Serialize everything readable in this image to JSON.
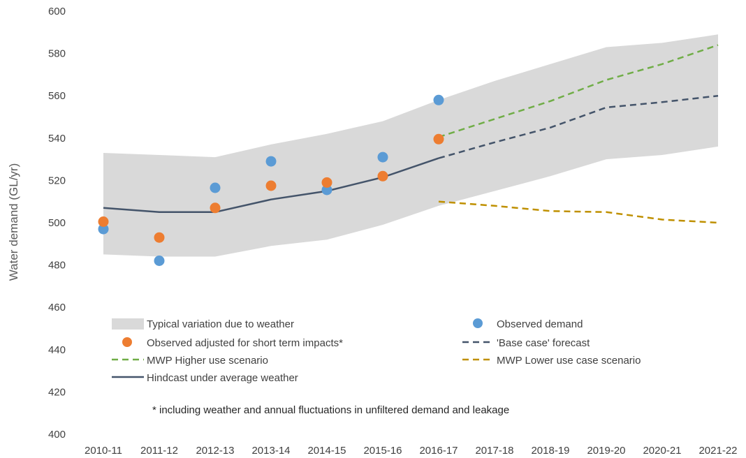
{
  "chart_data": {
    "type": "line",
    "title": "",
    "xlabel": "",
    "ylabel": "Water demand (GL/yr)",
    "ylim": [
      400,
      600
    ],
    "yticks": [
      400,
      420,
      440,
      460,
      480,
      500,
      520,
      540,
      560,
      580,
      600
    ],
    "grid": false,
    "legend_position": "bottom-inside",
    "categories": [
      "2010-11",
      "2011-12",
      "2012-13",
      "2013-14",
      "2014-15",
      "2015-16",
      "2016-17",
      "2017-18",
      "2018-19",
      "2019-20",
      "2020-21",
      "2021-22"
    ],
    "band": {
      "name": "Typical variation due to weather",
      "color": "#d9d9d9",
      "lower": [
        485,
        484,
        484,
        489,
        492,
        499,
        508,
        515,
        522,
        530,
        532,
        536
      ],
      "upper": [
        533,
        532,
        531,
        537,
        542,
        548,
        558,
        567,
        575,
        583,
        585,
        589
      ]
    },
    "series": [
      {
        "name": "Observed demand",
        "kind": "scatter",
        "color": "#5b9bd5",
        "values": [
          497,
          482,
          516.5,
          529,
          515.5,
          531,
          558,
          null,
          null,
          null,
          null,
          null
        ]
      },
      {
        "name": "Observed adjusted for short term impacts*",
        "kind": "scatter",
        "color": "#ed7d31",
        "values": [
          500.5,
          493,
          507,
          517.5,
          519,
          522,
          539.5,
          null,
          null,
          null,
          null,
          null
        ]
      },
      {
        "name": "Hindcast under average weather",
        "kind": "line",
        "dash": "solid",
        "color": "#44546a",
        "values": [
          507,
          505,
          505,
          511,
          515,
          521.5,
          530.5,
          null,
          null,
          null,
          null,
          null
        ]
      },
      {
        "name": "'Base case' forecast",
        "kind": "line",
        "dash": "dashed",
        "color": "#44546a",
        "values": [
          null,
          null,
          null,
          null,
          null,
          null,
          530.5,
          538,
          545,
          554.5,
          557,
          560
        ]
      },
      {
        "name": "MWP Higher use scenario",
        "kind": "line",
        "dash": "dashed",
        "color": "#70ad47",
        "values": [
          null,
          null,
          null,
          null,
          null,
          null,
          540.5,
          549,
          557.5,
          567.5,
          575,
          584
        ]
      },
      {
        "name": "MWP Lower use case scenario",
        "kind": "line",
        "dash": "dashed",
        "color": "#bf9000",
        "values": [
          null,
          null,
          null,
          null,
          null,
          null,
          510,
          508,
          505.5,
          505,
          501.5,
          500
        ]
      }
    ],
    "legend_labels": {
      "band": "Typical variation due to weather",
      "observed": "Observed demand",
      "adjusted": "Observed adjusted for short term impacts*",
      "base_case": "'Base case' forecast",
      "higher": "MWP Higher use scenario",
      "lower": "MWP Lower use case scenario",
      "hindcast": "Hindcast under average weather"
    },
    "footnote": "* including weather and annual fluctuations in unfiltered demand and leakage"
  }
}
